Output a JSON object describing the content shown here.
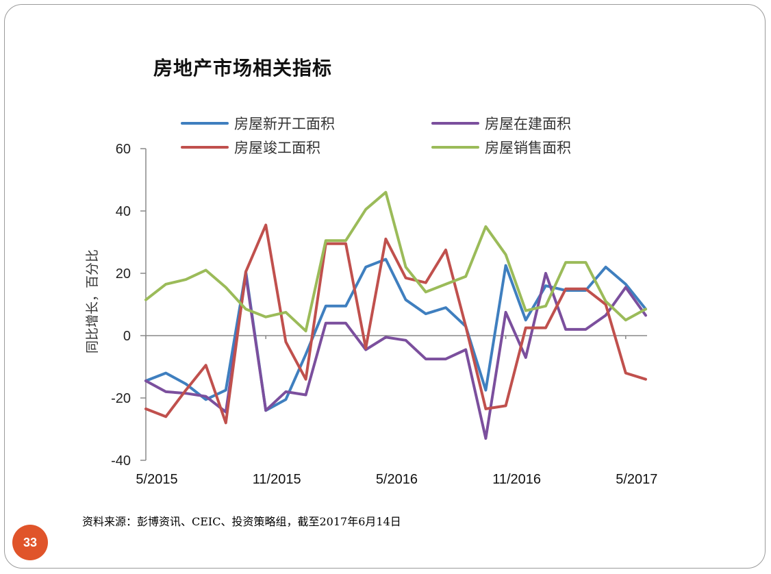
{
  "slide": {
    "title": "房地产市场相关指标",
    "source": "资料来源：彭博资讯、CEIC、投资策略组，截至2017年6月14日",
    "page_number": "33"
  },
  "chart_data": {
    "type": "line",
    "title": "",
    "xlabel": "",
    "ylabel": "同比增长，百分比",
    "ylim": [
      -40,
      60
    ],
    "yticks": [
      -40,
      -20,
      0,
      20,
      40,
      60
    ],
    "x_tick_labels": [
      {
        "index": 0,
        "label": "5/2015"
      },
      {
        "index": 6,
        "label": "11/2015"
      },
      {
        "index": 12,
        "label": "5/2016"
      },
      {
        "index": 18,
        "label": "11/2016"
      },
      {
        "index": 24,
        "label": "5/2017"
      }
    ],
    "legend_placement": "top",
    "grid": false,
    "series": [
      {
        "name": "房屋新开工面积",
        "color": "#3f7fbf",
        "values": [
          -14.5,
          -12,
          -15.5,
          -20.5,
          -17.5,
          20.5,
          -24,
          -20.5,
          -6,
          9.5,
          9.5,
          22,
          24.5,
          11.5,
          7,
          9,
          3,
          -17.5,
          22.5,
          5,
          16,
          14.5,
          14.5,
          22,
          16.5,
          8.5
        ]
      },
      {
        "name": "房屋在建面积",
        "color": "#7b4f9d",
        "values": [
          -14.5,
          -18,
          -18.5,
          -19.5,
          -24.5,
          19.5,
          -24,
          -18,
          -19,
          4,
          4,
          -4.5,
          -0.5,
          -1.5,
          -7.5,
          -7.5,
          -4.5,
          -33,
          7.5,
          -7,
          20,
          2,
          2,
          6.5,
          15.5,
          6.5
        ]
      },
      {
        "name": "房屋竣工面积",
        "color": "#c0504d",
        "values": [
          -23.5,
          -26,
          -17.5,
          -9.5,
          -28,
          20.5,
          35.5,
          -2,
          -14,
          29.5,
          29.5,
          -4,
          31,
          18.5,
          17,
          27.5,
          3,
          -23.5,
          -22.5,
          2.5,
          2.5,
          15,
          15,
          10,
          -12,
          -14
        ]
      },
      {
        "name": "房屋销售面积",
        "color": "#9bbb59",
        "values": [
          11.5,
          16.5,
          18,
          21,
          15.5,
          8.5,
          6,
          7.5,
          1.5,
          30.5,
          30.5,
          40.5,
          46,
          22,
          14,
          16.5,
          19,
          35,
          26,
          8,
          9.5,
          23.5,
          23.5,
          11,
          5,
          8.5
        ]
      }
    ]
  }
}
